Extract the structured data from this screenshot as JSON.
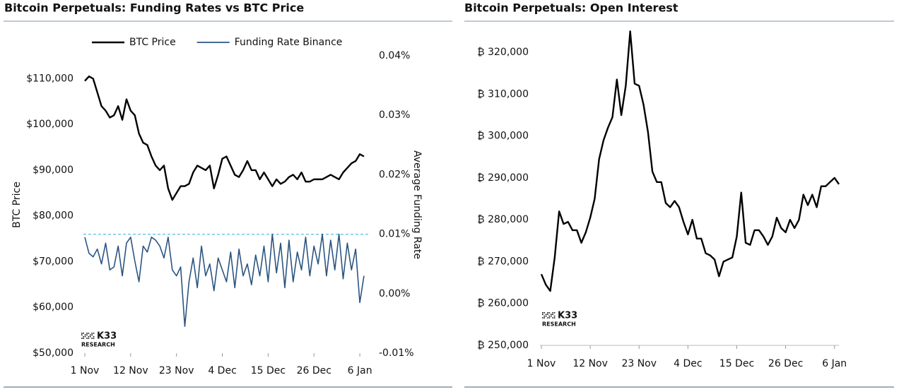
{
  "chart_data": [
    {
      "type": "line",
      "title": "Bitcoin Perpetuals: Funding Rates vs BTC Price",
      "y_label": "BTC Price",
      "y2_label": "Average Funding Rate",
      "logo": {
        "name": "K33",
        "sub": "RESEARCH"
      },
      "categories": [
        "1 Nov",
        null,
        null,
        null,
        null,
        null,
        null,
        null,
        null,
        null,
        null,
        "12 Nov",
        null,
        null,
        null,
        null,
        null,
        null,
        null,
        null,
        null,
        null,
        "23 Nov",
        null,
        null,
        null,
        null,
        null,
        null,
        null,
        null,
        null,
        null,
        "4 Dec",
        null,
        null,
        null,
        null,
        null,
        null,
        null,
        null,
        null,
        null,
        "15 Dec",
        null,
        null,
        null,
        null,
        null,
        null,
        null,
        null,
        null,
        null,
        "26 Dec",
        null,
        null,
        null,
        null,
        null,
        null,
        null,
        null,
        null,
        null,
        "6 Jan",
        null
      ],
      "series": [
        {
          "name": "BTC Price",
          "color": "#000000",
          "axis": "y",
          "values": [
            109500,
            110500,
            110000,
            107000,
            104000,
            103000,
            101500,
            102000,
            104000,
            101000,
            105500,
            103000,
            102000,
            98000,
            96000,
            95500,
            93000,
            91000,
            90000,
            91000,
            86000,
            83500,
            85000,
            86500,
            86500,
            87000,
            89500,
            91000,
            90500,
            90000,
            91000,
            86000,
            89000,
            92500,
            93000,
            91000,
            89000,
            88500,
            90000,
            92000,
            90000,
            90000,
            88000,
            89500,
            88000,
            86500,
            88000,
            87000,
            87500,
            88500,
            89000,
            88000,
            89500,
            87500,
            87500,
            88000,
            88000,
            88000,
            88500,
            89000,
            88500,
            88000,
            89500,
            90500,
            91500,
            92000,
            93500,
            93000
          ]
        },
        {
          "name": "Funding Rate Binance",
          "color": "#2b5580",
          "axis": "y2",
          "values": [
            0.0095,
            0.0068,
            0.0062,
            0.0075,
            0.005,
            0.0085,
            0.004,
            0.0045,
            0.008,
            0.003,
            0.0085,
            0.0095,
            0.0055,
            0.002,
            0.008,
            0.007,
            0.0095,
            0.009,
            0.008,
            0.006,
            0.0095,
            0.004,
            0.003,
            0.0045,
            -0.0055,
            0.002,
            0.006,
            0.001,
            0.008,
            0.003,
            0.005,
            0.0005,
            0.006,
            0.004,
            0.002,
            0.007,
            0.001,
            0.0075,
            0.003,
            0.005,
            0.0015,
            0.0065,
            0.003,
            0.008,
            0.002,
            0.01,
            0.0035,
            0.0085,
            0.001,
            0.009,
            0.002,
            0.007,
            0.004,
            0.0095,
            0.003,
            0.008,
            0.005,
            0.01,
            0.003,
            0.009,
            0.004,
            0.01,
            0.0025,
            0.0085,
            0.004,
            0.0075,
            -0.0015,
            0.003
          ]
        }
      ],
      "ylim": [
        50000,
        115000
      ],
      "yticks": [
        {
          "value": 50000,
          "label": "$50,000"
        },
        {
          "value": 60000,
          "label": "$60,000"
        },
        {
          "value": 70000,
          "label": "$70,000"
        },
        {
          "value": 80000,
          "label": "$80,000"
        },
        {
          "value": 90000,
          "label": "$90,000"
        },
        {
          "value": 100000,
          "label": "$100,000"
        },
        {
          "value": 110000,
          "label": "$110,000"
        }
      ],
      "y2lim": [
        -0.01,
        0.04
      ],
      "y2ticks": [
        {
          "value": -0.01,
          "label": "-0.01%"
        },
        {
          "value": 0,
          "label": "0.00%"
        },
        {
          "value": 0.01,
          "label": "0.01%"
        },
        {
          "value": 0.02,
          "label": "0.02%"
        },
        {
          "value": 0.03,
          "label": "0.03%"
        },
        {
          "value": 0.04,
          "label": "0.04%"
        }
      ],
      "reference_line": {
        "axis": "y2",
        "value": 0.01,
        "color": "#5bc0de"
      },
      "legend": "top",
      "grid": false
    },
    {
      "type": "line",
      "title": "Bitcoin Perpetuals: Open Interest",
      "logo": {
        "name": "K33",
        "sub": "RESEARCH"
      },
      "categories": [
        "1 Nov",
        null,
        null,
        null,
        null,
        null,
        null,
        null,
        null,
        null,
        null,
        "12 Nov",
        null,
        null,
        null,
        null,
        null,
        null,
        null,
        null,
        null,
        null,
        "23 Nov",
        null,
        null,
        null,
        null,
        null,
        null,
        null,
        null,
        null,
        null,
        "4 Dec",
        null,
        null,
        null,
        null,
        null,
        null,
        null,
        null,
        null,
        null,
        "15 Dec",
        null,
        null,
        null,
        null,
        null,
        null,
        null,
        null,
        null,
        null,
        "26 Dec",
        null,
        null,
        null,
        null,
        null,
        null,
        null,
        null,
        null,
        null,
        "6 Jan",
        null
      ],
      "series": [
        {
          "name": "Open Interest",
          "color": "#000000",
          "axis": "y",
          "values": [
            267000,
            264500,
            263000,
            271000,
            282000,
            279000,
            279500,
            277500,
            277500,
            274500,
            277000,
            280500,
            285000,
            294500,
            299000,
            302000,
            304500,
            313500,
            305000,
            312000,
            325000,
            312500,
            312000,
            307500,
            301000,
            291500,
            289000,
            289000,
            284000,
            283000,
            284500,
            283000,
            279500,
            276500,
            280000,
            275500,
            275500,
            272000,
            271500,
            270500,
            266500,
            270000,
            270500,
            271000,
            276000,
            286500,
            274500,
            274000,
            277500,
            277500,
            276000,
            274000,
            276000,
            280500,
            278000,
            277000,
            280000,
            278000,
            280000,
            286000,
            283500,
            286000,
            283000,
            288000,
            288000,
            289000,
            290000,
            288500
          ]
        }
      ],
      "ylim": [
        250000,
        327000
      ],
      "yticks": [
        {
          "value": 250000,
          "label": "₿ 250,000"
        },
        {
          "value": 260000,
          "label": "₿ 260,000"
        },
        {
          "value": 270000,
          "label": "₿ 270,000"
        },
        {
          "value": 280000,
          "label": "₿ 280,000"
        },
        {
          "value": 290000,
          "label": "₿ 290,000"
        },
        {
          "value": 300000,
          "label": "₿ 300,000"
        },
        {
          "value": 310000,
          "label": "₿ 310,000"
        },
        {
          "value": 320000,
          "label": "₿ 320,000"
        }
      ],
      "grid": false
    }
  ]
}
